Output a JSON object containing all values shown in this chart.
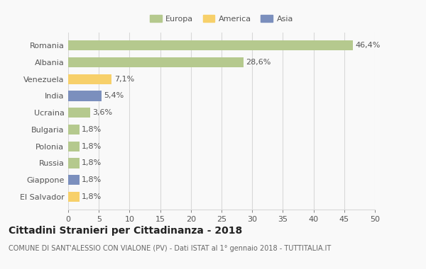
{
  "categories": [
    "Romania",
    "Albania",
    "Venezuela",
    "India",
    "Ucraina",
    "Bulgaria",
    "Polonia",
    "Russia",
    "Giappone",
    "El Salvador"
  ],
  "values": [
    46.4,
    28.6,
    7.1,
    5.4,
    3.6,
    1.8,
    1.8,
    1.8,
    1.8,
    1.8
  ],
  "labels": [
    "46,4%",
    "28,6%",
    "7,1%",
    "5,4%",
    "3,6%",
    "1,8%",
    "1,8%",
    "1,8%",
    "1,8%",
    "1,8%"
  ],
  "colors": [
    "#b5c98e",
    "#b5c98e",
    "#f7d06a",
    "#7b8fbd",
    "#b5c98e",
    "#b5c98e",
    "#b5c98e",
    "#b5c98e",
    "#7b8fbd",
    "#f7d06a"
  ],
  "legend_labels": [
    "Europa",
    "America",
    "Asia"
  ],
  "legend_colors": [
    "#b5c98e",
    "#f7d06a",
    "#7b8fbd"
  ],
  "title": "Cittadini Stranieri per Cittadinanza - 2018",
  "subtitle": "COMUNE DI SANT'ALESSIO CON VIALONE (PV) - Dati ISTAT al 1° gennaio 2018 - TUTTITALIA.IT",
  "xlim": [
    0,
    50
  ],
  "xticks": [
    0,
    5,
    10,
    15,
    20,
    25,
    30,
    35,
    40,
    45,
    50
  ],
  "background_color": "#f9f9f9",
  "grid_color": "#d8d8d8",
  "bar_height": 0.6,
  "title_fontsize": 10,
  "subtitle_fontsize": 7,
  "label_fontsize": 8,
  "tick_fontsize": 8,
  "legend_fontsize": 8
}
